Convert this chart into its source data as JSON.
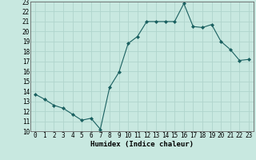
{
  "x": [
    0,
    1,
    2,
    3,
    4,
    5,
    6,
    7,
    8,
    9,
    10,
    11,
    12,
    13,
    14,
    15,
    16,
    17,
    18,
    19,
    20,
    21,
    22,
    23
  ],
  "y": [
    13.7,
    13.2,
    12.6,
    12.3,
    11.7,
    11.1,
    11.3,
    10.2,
    14.4,
    15.9,
    18.8,
    19.5,
    21.0,
    21.0,
    21.0,
    21.0,
    22.8,
    20.5,
    20.4,
    20.7,
    19.0,
    18.2,
    17.1,
    17.2
  ],
  "xlabel": "Humidex (Indice chaleur)",
  "ylim": [
    10,
    23
  ],
  "xlim": [
    -0.5,
    23.5
  ],
  "bg_color": "#c8e8e0",
  "grid_color": "#b0d4cc",
  "line_color": "#1a6060",
  "marker_color": "#1a6060",
  "yticks": [
    10,
    11,
    12,
    13,
    14,
    15,
    16,
    17,
    18,
    19,
    20,
    21,
    22,
    23
  ],
  "xticks": [
    0,
    1,
    2,
    3,
    4,
    5,
    6,
    7,
    8,
    9,
    10,
    11,
    12,
    13,
    14,
    15,
    16,
    17,
    18,
    19,
    20,
    21,
    22,
    23
  ],
  "tick_fontsize": 5.5,
  "xlabel_fontsize": 6.5
}
